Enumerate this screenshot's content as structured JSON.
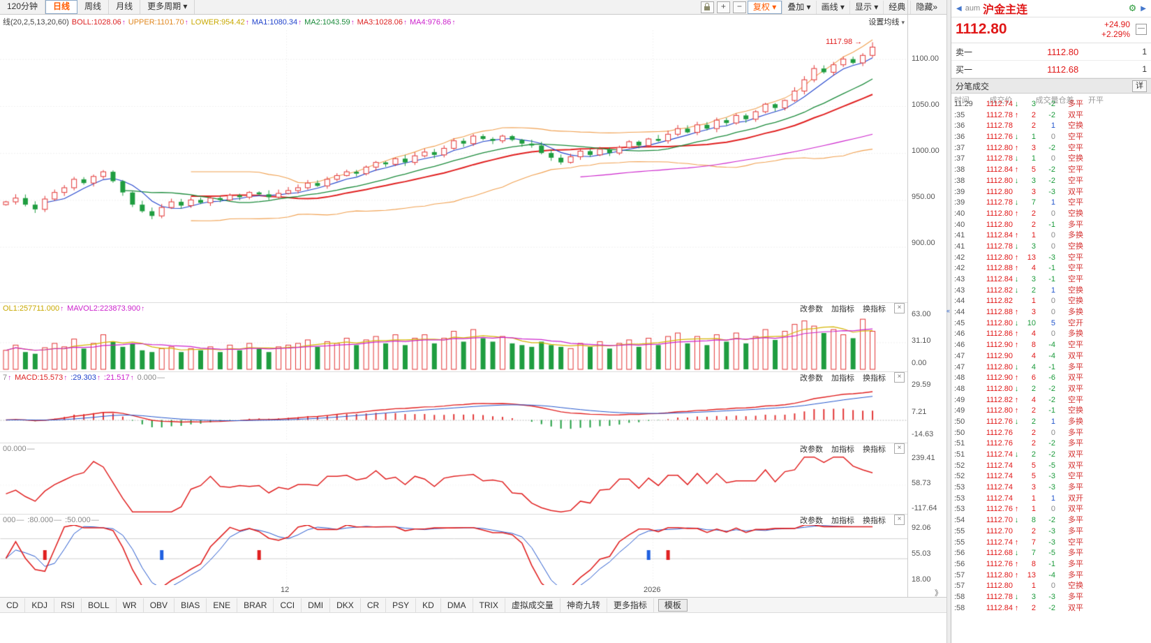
{
  "toolbar": {
    "period_tabs": [
      {
        "t": "120分钟",
        "active": false,
        "caret": false
      },
      {
        "t": "日线",
        "active": true,
        "caret": false
      },
      {
        "t": "周线",
        "active": false,
        "caret": false
      },
      {
        "t": "月线",
        "active": false,
        "caret": false
      },
      {
        "t": "更多周期",
        "active": false,
        "caret": true
      }
    ],
    "tool_buttons": [
      {
        "t": "复权",
        "caret": true,
        "hl": true
      },
      {
        "t": "叠加",
        "caret": true,
        "hl": false
      },
      {
        "t": "画线",
        "caret": true,
        "hl": false
      },
      {
        "t": "显示",
        "caret": true,
        "hl": false
      },
      {
        "t": "经典",
        "caret": false,
        "hl": false
      },
      {
        "t": "隐藏",
        "caret": false,
        "hl": false,
        "after": "»"
      }
    ]
  },
  "indicator_bar": {
    "items": [
      {
        "t": "线(20,2,5,13,20,60)",
        "c": "#444",
        "a": ""
      },
      {
        "t": "BOLL:1028.06",
        "c": "#dd2222",
        "a": "↑"
      },
      {
        "t": "UPPER:1101.70",
        "c": "#e08820",
        "a": "↑"
      },
      {
        "t": "LOWER:954.42",
        "c": "#c8a800",
        "a": "↑"
      },
      {
        "t": "MA1:1080.34",
        "c": "#2244cc",
        "a": "↑"
      },
      {
        "t": "MA2:1043.59",
        "c": "#1a8a3a",
        "a": "↑"
      },
      {
        "t": "MA3:1028.06",
        "c": "#dd2222",
        "a": "↑"
      },
      {
        "t": "MA4:976.86",
        "c": "#cc22cc",
        "a": "↑"
      }
    ],
    "right_label": "设置均线"
  },
  "panel_headers": {
    "actions": [
      "改参数",
      "加指标",
      "换指标"
    ],
    "vol": [
      {
        "t": "OL1:257711.000",
        "c": "#c8a800",
        "a": "↑"
      },
      {
        "t": "MAVOL2:223873.900",
        "c": "#cc22cc",
        "a": "↑"
      }
    ],
    "macd": [
      {
        "t": "7",
        "c": "#888",
        "a": "↑"
      },
      {
        "t": "MACD:15.573",
        "c": "#dd2222",
        "a": "↑"
      },
      {
        "t": ":29.303",
        "c": "#2244cc",
        "a": "↑"
      },
      {
        "t": ":21.517",
        "c": "#cc22cc",
        "a": "↑"
      },
      {
        "t": "0.000",
        "c": "#888",
        "a": "—"
      }
    ],
    "p3": [
      {
        "t": "00.000",
        "c": "#888",
        "a": "—"
      }
    ],
    "p4": [
      {
        "t": "000",
        "c": "#888",
        "a": "—"
      },
      {
        "t": ":80.000",
        "c": "#888",
        "a": "—"
      },
      {
        "t": ":50.000",
        "c": "#888",
        "a": "—"
      }
    ]
  },
  "axes": {
    "main": [
      "1100.00",
      "1050.00",
      "1000.00",
      "950.00",
      "900.00"
    ],
    "vol": [
      "63.00",
      "31.10",
      "0.00"
    ],
    "macd": [
      "29.59",
      "7.21",
      "-14.63"
    ],
    "p3": [
      "239.41",
      "58.73",
      "-117.64"
    ],
    "p4": [
      "92.06",
      "55.03",
      "18.00"
    ],
    "x": [
      "12",
      "2026"
    ],
    "more": "》"
  },
  "annotation": {
    "high": "1117.98",
    "arrow": "→"
  },
  "bottom_tabs": {
    "items": [
      "CD",
      "KDJ",
      "RSI",
      "BOLL",
      "WR",
      "OBV",
      "BIAS",
      "ENE",
      "BRAR",
      "CCI",
      "DMI",
      "DKX",
      "CR",
      "PSY",
      "KD",
      "DMA",
      "TRIX",
      "虚拟成交量",
      "神奇九转",
      "更多指标"
    ],
    "boxed": "模板"
  },
  "quote": {
    "symbol_prefix": "aum",
    "symbol": "沪金主连",
    "last": "1112.80",
    "change": "+24.90",
    "change_pct": "+2.29%",
    "ask_label": "卖一",
    "ask_price": "1112.80",
    "ask_qty": "1",
    "bid_label": "买一",
    "bid_price": "1112.68",
    "bid_qty": "1",
    "tick_title": "分笔成交",
    "tick_more": "详",
    "columns": [
      "时间",
      "成交价",
      "成交量仓差",
      "开平"
    ],
    "ticks": [
      [
        "11:29",
        "1112.74",
        "↓",
        "3",
        "-2",
        "多平"
      ],
      [
        ":35",
        "1112.78",
        "↑",
        "2",
        "-2",
        "双平"
      ],
      [
        ":36",
        "1112.78",
        "",
        "2",
        "1",
        "空换"
      ],
      [
        ":36",
        "1112.76",
        "↓",
        "1",
        "0",
        "空平"
      ],
      [
        ":37",
        "1112.80",
        "↑",
        "3",
        "-2",
        "空平"
      ],
      [
        ":37",
        "1112.78",
        "↓",
        "1",
        "0",
        "空换"
      ],
      [
        ":38",
        "1112.84",
        "↑",
        "5",
        "-2",
        "空平"
      ],
      [
        ":38",
        "1112.80",
        "↓",
        "3",
        "-2",
        "空平"
      ],
      [
        ":39",
        "1112.80",
        "",
        "3",
        "-3",
        "双平"
      ],
      [
        ":39",
        "1112.78",
        "↓",
        "7",
        "1",
        "空平"
      ],
      [
        ":40",
        "1112.80",
        "↑",
        "2",
        "0",
        "空换"
      ],
      [
        ":40",
        "1112.80",
        "",
        "2",
        "-1",
        "多平"
      ],
      [
        ":41",
        "1112.84",
        "↑",
        "1",
        "0",
        "多换"
      ],
      [
        ":41",
        "1112.78",
        "↓",
        "3",
        "0",
        "空换"
      ],
      [
        ":42",
        "1112.80",
        "↑",
        "13",
        "-3",
        "空平"
      ],
      [
        ":42",
        "1112.88",
        "↑",
        "4",
        "-1",
        "空平"
      ],
      [
        ":43",
        "1112.84",
        "↓",
        "3",
        "-1",
        "空平"
      ],
      [
        ":43",
        "1112.82",
        "↓",
        "2",
        "1",
        "空换"
      ],
      [
        ":44",
        "1112.82",
        "",
        "1",
        "0",
        "空换"
      ],
      [
        ":44",
        "1112.88",
        "↑",
        "3",
        "0",
        "多换"
      ],
      [
        ":45",
        "1112.80",
        "↓",
        "10",
        "5",
        "空开"
      ],
      [
        ":46",
        "1112.86",
        "↑",
        "4",
        "0",
        "多换"
      ],
      [
        ":46",
        "1112.90",
        "↑",
        "8",
        "-4",
        "空平"
      ],
      [
        ":47",
        "1112.90",
        "",
        "4",
        "-4",
        "双平"
      ],
      [
        ":47",
        "1112.80",
        "↓",
        "4",
        "-1",
        "多平"
      ],
      [
        ":48",
        "1112.90",
        "↑",
        "6",
        "-6",
        "双平"
      ],
      [
        ":48",
        "1112.80",
        "↓",
        "2",
        "-2",
        "双平"
      ],
      [
        ":49",
        "1112.82",
        "↑",
        "4",
        "-2",
        "空平"
      ],
      [
        ":49",
        "1112.80",
        "↑",
        "2",
        "-1",
        "空换"
      ],
      [
        ":50",
        "1112.76",
        "↓",
        "2",
        "1",
        "多换"
      ],
      [
        ":50",
        "1112.76",
        "",
        "2",
        "0",
        "多平"
      ],
      [
        ":51",
        "1112.76",
        "",
        "2",
        "-2",
        "多平"
      ],
      [
        ":51",
        "1112.74",
        "↓",
        "2",
        "-2",
        "双平"
      ],
      [
        ":52",
        "1112.74",
        "",
        "5",
        "-5",
        "双平"
      ],
      [
        ":52",
        "1112.74",
        "",
        "5",
        "-3",
        "空平"
      ],
      [
        ":53",
        "1112.74",
        "",
        "3",
        "-3",
        "多平"
      ],
      [
        ":53",
        "1112.74",
        "",
        "1",
        "1",
        "双开"
      ],
      [
        ":53",
        "1112.76",
        "↑",
        "1",
        "0",
        "双平"
      ],
      [
        ":54",
        "1112.70",
        "↓",
        "8",
        "-2",
        "多平"
      ],
      [
        ":55",
        "1112.70",
        "",
        "2",
        "-3",
        "多平"
      ],
      [
        ":55",
        "1112.74",
        "↑",
        "7",
        "-3",
        "空平"
      ],
      [
        ":56",
        "1112.68",
        "↓",
        "7",
        "-5",
        "多平"
      ],
      [
        ":56",
        "1112.76",
        "↑",
        "8",
        "-1",
        "多平"
      ],
      [
        ":57",
        "1112.80",
        "↑",
        "13",
        "-4",
        "多平"
      ],
      [
        ":57",
        "1112.80",
        "",
        "1",
        "0",
        "空换"
      ],
      [
        ":58",
        "1112.78",
        "↓",
        "3",
        "-3",
        "多平"
      ],
      [
        ":58",
        "1112.84",
        "↑",
        "2",
        "-2",
        "双平"
      ]
    ]
  },
  "chart_data": {
    "type": "candlestick",
    "title": "沪金主连 日线",
    "legend": [
      "BOLL(20,2)",
      "MA1",
      "MA2",
      "MA3",
      "MA4",
      "VOL",
      "MACD"
    ],
    "x_axis_marks": [
      "12",
      "2026"
    ],
    "y_axis_main": [
      1100,
      1050,
      1000,
      950,
      900
    ],
    "last_high": 1117.98,
    "last_close": 1112.8,
    "closes": [
      948,
      952,
      945,
      940,
      951,
      958,
      963,
      972,
      968,
      975,
      980,
      970,
      958,
      945,
      938,
      933,
      942,
      948,
      944,
      950,
      947,
      952,
      950,
      955,
      953,
      958,
      956,
      953,
      957,
      960,
      963,
      968,
      965,
      972,
      976,
      980,
      978,
      985,
      990,
      988,
      994,
      990,
      997,
      1001,
      998,
      1005,
      1013,
      1010,
      1018,
      1015,
      1013,
      1018,
      1014,
      1010,
      1008,
      1000,
      995,
      990,
      996,
      1002,
      998,
      1004,
      1000,
      1006,
      1012,
      1008,
      1015,
      1013,
      1020,
      1026,
      1022,
      1030,
      1026,
      1035,
      1032,
      1040,
      1036,
      1044,
      1052,
      1048,
      1056,
      1066,
      1078,
      1090,
      1086,
      1094,
      1100,
      1096,
      1104,
      1112.8
    ],
    "volumes": [
      22,
      28,
      20,
      18,
      25,
      30,
      26,
      35,
      24,
      30,
      40,
      32,
      26,
      30,
      22,
      20,
      24,
      26,
      20,
      24,
      22,
      26,
      20,
      28,
      22,
      30,
      24,
      20,
      26,
      28,
      30,
      34,
      26,
      32,
      30,
      36,
      28,
      34,
      38,
      30,
      40,
      28,
      36,
      40,
      30,
      36,
      44,
      32,
      46,
      36,
      32,
      38,
      30,
      28,
      26,
      32,
      28,
      26,
      24,
      30,
      26,
      32,
      24,
      30,
      34,
      26,
      36,
      28,
      38,
      42,
      30,
      38,
      28,
      40,
      32,
      42,
      30,
      38,
      46,
      34,
      44,
      52,
      56,
      50,
      42,
      46,
      40,
      36,
      58,
      44
    ],
    "vol_axis": [
      63.0,
      31.1,
      0.0
    ],
    "macd_axis": [
      29.59,
      7.21,
      -14.63
    ],
    "p3_axis": [
      239.41,
      58.73,
      -117.64
    ],
    "p4_axis": [
      92.06,
      55.03,
      18.0
    ],
    "signals": [
      {
        "i": 4,
        "c": "#e02020"
      },
      {
        "i": 16,
        "c": "#2060e0"
      },
      {
        "i": 26,
        "c": "#e02020"
      },
      {
        "i": 66,
        "c": "#2060e0"
      },
      {
        "i": 68,
        "c": "#e02020"
      }
    ],
    "overlays": {
      "boll": [
        20,
        2
      ],
      "ma_periods": [
        5,
        13,
        20,
        60
      ]
    }
  }
}
